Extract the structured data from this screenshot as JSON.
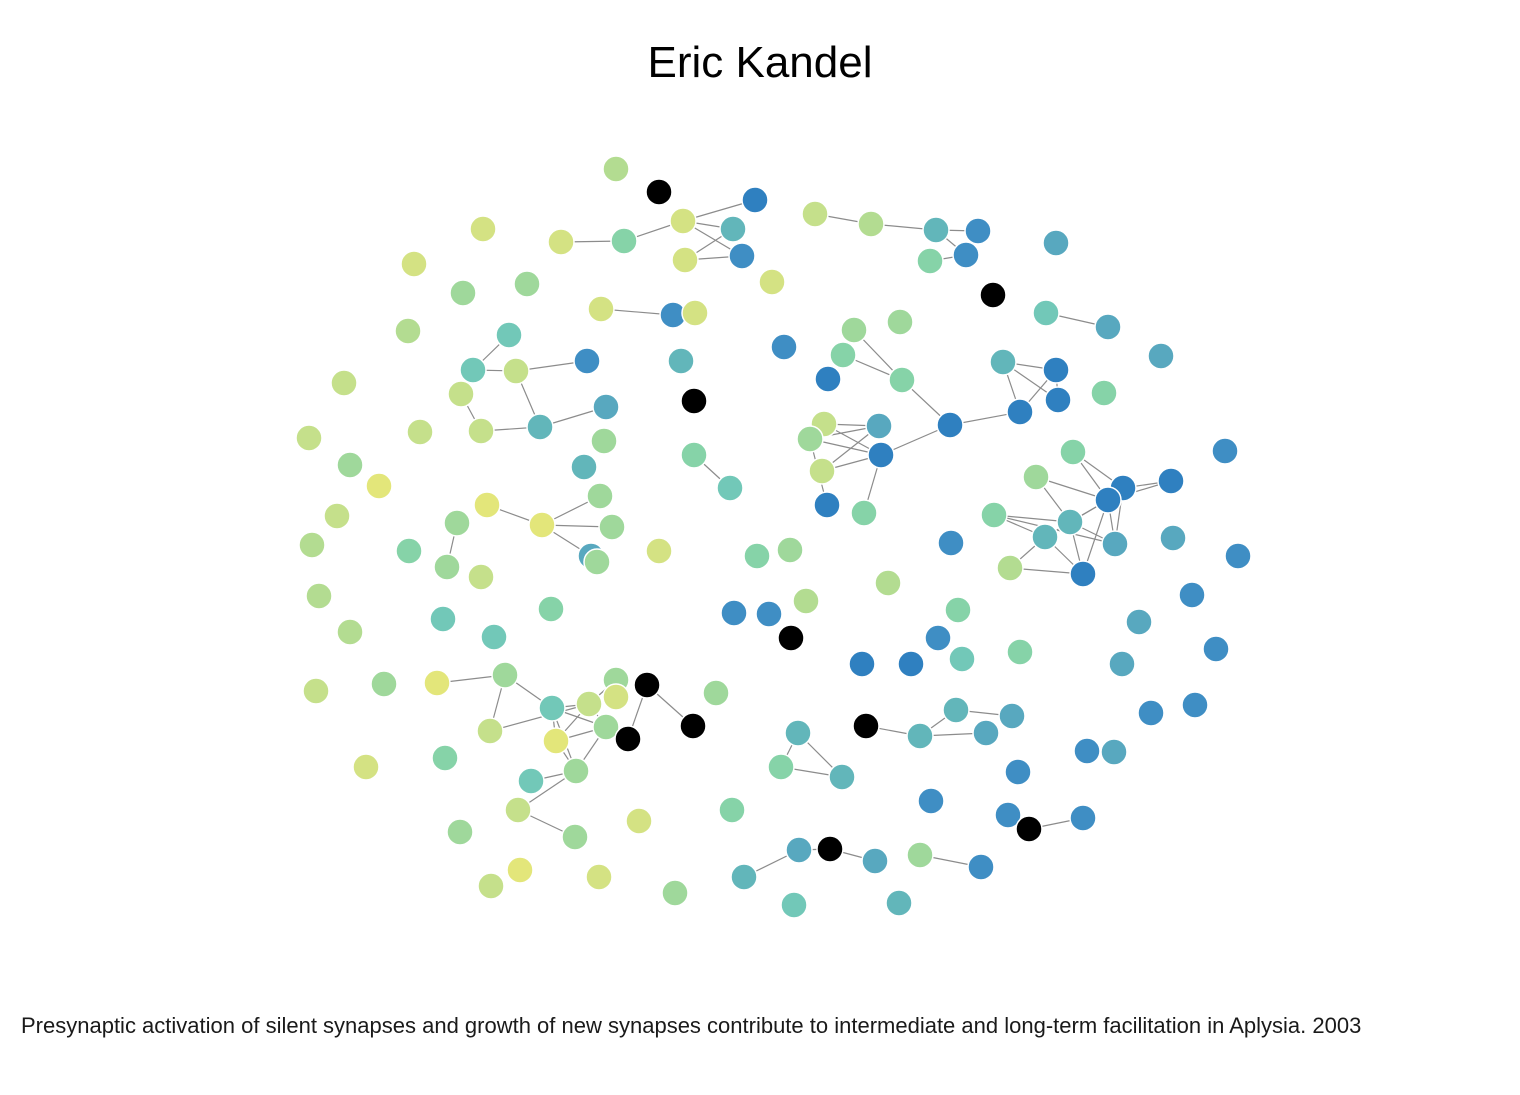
{
  "title": "Eric Kandel",
  "caption": "Presynaptic activation of silent synapses and growth of new synapses contribute to intermediate and long-term facilitation in Aplysia. 2003",
  "colors": {
    "edge": "#8c8c8c",
    "node_stroke": "#ffffff",
    "special_node": "#000000"
  }
}
